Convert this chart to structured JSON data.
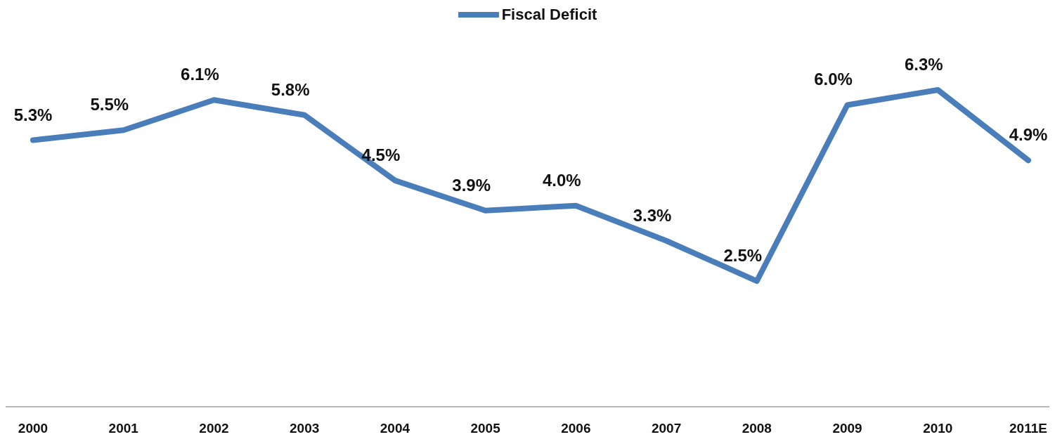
{
  "chart_data": {
    "type": "line",
    "categories": [
      "2000",
      "2001",
      "2002",
      "2003",
      "2004",
      "2005",
      "2006",
      "2007",
      "2008",
      "2009",
      "2010",
      "2011E"
    ],
    "series": [
      {
        "name": "Fiscal Deficit",
        "color": "#4a7ebb",
        "values": [
          5.3,
          5.5,
          6.1,
          5.8,
          4.5,
          3.9,
          4.0,
          3.3,
          2.5,
          6.0,
          6.3,
          4.9
        ],
        "value_labels": [
          "5.3%",
          "5.5%",
          "6.1%",
          "5.8%",
          "4.5%",
          "3.9%",
          "4.0%",
          "3.3%",
          "2.5%",
          "6.0%",
          "6.3%",
          "4.9%"
        ]
      }
    ],
    "legend": "top",
    "marker": "none",
    "line_style": "solid"
  }
}
